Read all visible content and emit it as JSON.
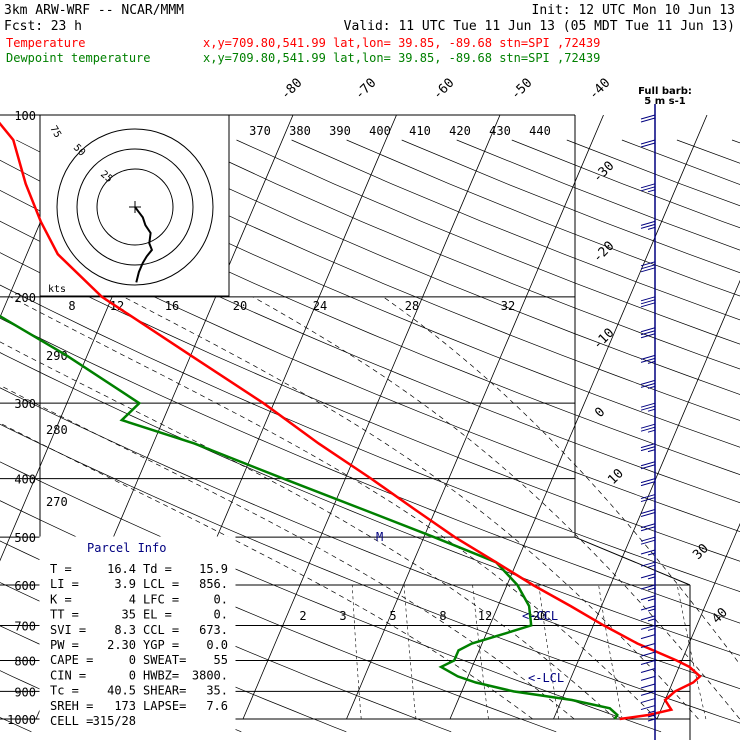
{
  "header": {
    "model": "3km ARW-WRF -- NCAR/MMM",
    "init": "Init: 12 UTC Mon 10 Jun 13",
    "fcst_label": "Fcst:",
    "fcst_value": "23 h",
    "valid": "Valid: 11 UTC Tue 11 Jun 13 (05 MDT Tue 11 Jun 13)",
    "temp_line_name": "Temperature",
    "temp_line_info": "x,y=709.80,541.99   lat,lon= 39.85, -89.68   stn=SPI ,72439",
    "dew_line_name": "Dewpoint temperature",
    "dew_line_info": "x,y=709.80,541.99   lat,lon= 39.85, -89.68   stn=SPI ,72439"
  },
  "colors": {
    "temperature": "#ff0000",
    "dewpoint": "#008000",
    "wind": "#000080",
    "parcel_title": "#000080",
    "background": "#ffffff",
    "grid": "#000000"
  },
  "wind_key": {
    "title": "Full barb:",
    "subtitle": "5 m s-1"
  },
  "hodograph": {
    "units": "kts",
    "ring_labels": [
      "75",
      "50",
      "25"
    ]
  },
  "chart_data": {
    "type": "line",
    "title": "",
    "pressure_axis": {
      "ticks": [
        100,
        200,
        300,
        400,
        500,
        600,
        700,
        800,
        900,
        1000
      ],
      "range": [
        1000,
        100
      ],
      "scale": "log"
    },
    "isotherm_labels_top": [
      "-80",
      "-70",
      "-60",
      "-50",
      "-40"
    ],
    "isotherm_labels_right": [
      "-30",
      "-20",
      "-10",
      "0",
      "10",
      "30",
      "40"
    ],
    "dry_adiabat_labels_top": [
      "370",
      "380",
      "390",
      "400",
      "410",
      "420",
      "430",
      "440"
    ],
    "dry_adiabat_labels_left": [
      "290",
      "280",
      "270"
    ],
    "mixing_ratio_labels_top": [
      "8",
      "12",
      "16",
      "20",
      "24",
      "28",
      "32"
    ],
    "mixing_ratio_labels_low": [
      "2",
      "3",
      "5",
      "8",
      "12",
      "20"
    ],
    "annotations": [
      {
        "text": "M",
        "pressure": 500
      },
      {
        "text": "<-CCL",
        "pressure": 673
      },
      {
        "text": "<-LCL",
        "pressure": 856
      }
    ],
    "series": [
      {
        "name": "Temperature",
        "points": [
          [
            1000,
            16.4
          ],
          [
            985,
            19
          ],
          [
            965,
            21
          ],
          [
            930,
            20
          ],
          [
            900,
            20.6
          ],
          [
            870,
            22
          ],
          [
            850,
            22.4
          ],
          [
            820,
            21
          ],
          [
            800,
            19.5
          ],
          [
            750,
            15
          ],
          [
            700,
            11
          ],
          [
            650,
            7
          ],
          [
            600,
            2.5
          ],
          [
            550,
            -2
          ],
          [
            500,
            -7
          ],
          [
            450,
            -12
          ],
          [
            400,
            -17.5
          ],
          [
            350,
            -24
          ],
          [
            300,
            -31
          ],
          [
            250,
            -40
          ],
          [
            200,
            -51
          ],
          [
            170,
            -57
          ],
          [
            150,
            -60
          ],
          [
            130,
            -63
          ],
          [
            110,
            -66
          ],
          [
            100,
            -69
          ]
        ]
      },
      {
        "name": "Dewpoint temperature",
        "points": [
          [
            1000,
            15.9
          ],
          [
            985,
            16
          ],
          [
            960,
            15
          ],
          [
            930,
            11
          ],
          [
            900,
            5
          ],
          [
            870,
            1
          ],
          [
            850,
            -1
          ],
          [
            820,
            -3
          ],
          [
            800,
            -2
          ],
          [
            770,
            -2
          ],
          [
            750,
            -1
          ],
          [
            720,
            2
          ],
          [
            700,
            4
          ],
          [
            650,
            3
          ],
          [
            600,
            1
          ],
          [
            550,
            -2
          ],
          [
            500,
            -9
          ],
          [
            450,
            -17
          ],
          [
            400,
            -26
          ],
          [
            350,
            -36
          ],
          [
            320,
            -44
          ],
          [
            300,
            -43
          ],
          [
            250,
            -52
          ],
          [
            200,
            -64
          ],
          [
            160,
            -75
          ],
          [
            140,
            -88
          ],
          [
            120,
            -85
          ],
          [
            100,
            -81
          ]
        ]
      }
    ],
    "wind_barbs": [
      [
        1000,
        3,
        210
      ],
      [
        985,
        5,
        200
      ],
      [
        970,
        6,
        200
      ],
      [
        950,
        8,
        210
      ],
      [
        925,
        9,
        220
      ],
      [
        900,
        10,
        225
      ],
      [
        875,
        11,
        230
      ],
      [
        850,
        12,
        235
      ],
      [
        825,
        12,
        240
      ],
      [
        800,
        12,
        245
      ],
      [
        775,
        12,
        250
      ],
      [
        750,
        12,
        250
      ],
      [
        725,
        12,
        255
      ],
      [
        700,
        13,
        255
      ],
      [
        675,
        13,
        260
      ],
      [
        650,
        14,
        260
      ],
      [
        625,
        14,
        260
      ],
      [
        600,
        15,
        265
      ],
      [
        575,
        15,
        265
      ],
      [
        550,
        16,
        265
      ],
      [
        525,
        17,
        265
      ],
      [
        500,
        18,
        265
      ],
      [
        475,
        18,
        265
      ],
      [
        450,
        19,
        265
      ],
      [
        425,
        20,
        265
      ],
      [
        400,
        21,
        265
      ],
      [
        375,
        22,
        265
      ],
      [
        350,
        23,
        265
      ],
      [
        325,
        24,
        265
      ],
      [
        300,
        25,
        265
      ],
      [
        275,
        26,
        265
      ],
      [
        250,
        27,
        265
      ],
      [
        225,
        28,
        265
      ],
      [
        200,
        29,
        265
      ],
      [
        175,
        28,
        265
      ],
      [
        150,
        26,
        265
      ],
      [
        130,
        24,
        265
      ],
      [
        110,
        22,
        265
      ],
      [
        100,
        20,
        265
      ]
    ]
  },
  "hodograph_trace": [
    [
      0,
      0
    ],
    [
      3,
      4
    ],
    [
      6,
      8
    ],
    [
      8,
      14
    ],
    [
      12,
      20
    ],
    [
      11,
      28
    ],
    [
      13,
      33
    ],
    [
      9,
      38
    ],
    [
      6,
      43
    ],
    [
      3,
      50
    ],
    [
      1,
      58
    ]
  ],
  "parcel_info": {
    "title": "Parcel Info",
    "rows": [
      [
        "T   =",
        "16.4",
        "Td  =",
        "15.9"
      ],
      [
        "LI  =",
        "3.9",
        "LCL =",
        "856."
      ],
      [
        "K   =",
        "4",
        "LFC =",
        "0."
      ],
      [
        "TT  =",
        "35",
        "EL  =",
        "0."
      ],
      [
        "SVI =",
        "8.3",
        "CCL =",
        "673."
      ],
      [
        "PW  =",
        "2.30",
        "YGP =",
        "0.0"
      ],
      [
        "CAPE =",
        "0",
        "SWEAT=",
        "55"
      ],
      [
        "CIN  =",
        "0",
        "HWBZ=",
        "3800."
      ],
      [
        "Tc  =",
        "40.5",
        "SHEAR=",
        "35."
      ],
      [
        "SREH =",
        "173",
        "LAPSE=",
        "7.6"
      ],
      [
        "CELL =",
        "315/28",
        "",
        ""
      ]
    ]
  }
}
